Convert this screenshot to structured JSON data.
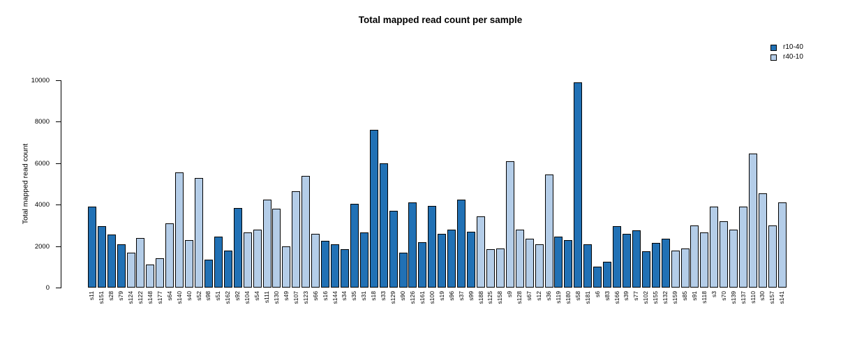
{
  "chart_data": {
    "type": "bar",
    "title": "Total mapped read count per sample",
    "xlabel": "",
    "ylabel": "Total mapped read count",
    "ylim": [
      0,
      10000
    ],
    "yticks": [
      0,
      2000,
      4000,
      6000,
      8000,
      10000
    ],
    "grid": false,
    "legend_position": "top-right",
    "series": [
      {
        "name": "r10-40",
        "color": "#2171B5"
      },
      {
        "name": "r40-10",
        "color": "#B4CDE8"
      }
    ],
    "bars": [
      {
        "sample": "s11",
        "group": "r10-40",
        "value": 3900
      },
      {
        "sample": "s151",
        "group": "r10-40",
        "value": 2950
      },
      {
        "sample": "s28",
        "group": "r10-40",
        "value": 2550
      },
      {
        "sample": "s79",
        "group": "r10-40",
        "value": 2100
      },
      {
        "sample": "s124",
        "group": "r40-10",
        "value": 1700
      },
      {
        "sample": "s122",
        "group": "r40-10",
        "value": 2400
      },
      {
        "sample": "s148",
        "group": "r40-10",
        "value": 1100
      },
      {
        "sample": "s177",
        "group": "r40-10",
        "value": 1400
      },
      {
        "sample": "s64",
        "group": "r40-10",
        "value": 3100
      },
      {
        "sample": "s140",
        "group": "r40-10",
        "value": 5550
      },
      {
        "sample": "s40",
        "group": "r40-10",
        "value": 2300
      },
      {
        "sample": "s52",
        "group": "r40-10",
        "value": 5300
      },
      {
        "sample": "s98",
        "group": "r10-40",
        "value": 1350
      },
      {
        "sample": "s51",
        "group": "r10-40",
        "value": 2450
      },
      {
        "sample": "s162",
        "group": "r10-40",
        "value": 1800
      },
      {
        "sample": "s92",
        "group": "r10-40",
        "value": 3850
      },
      {
        "sample": "s104",
        "group": "r40-10",
        "value": 2650
      },
      {
        "sample": "s54",
        "group": "r40-10",
        "value": 2800
      },
      {
        "sample": "s111",
        "group": "r40-10",
        "value": 4250
      },
      {
        "sample": "s130",
        "group": "r40-10",
        "value": 3800
      },
      {
        "sample": "s49",
        "group": "r40-10",
        "value": 2000
      },
      {
        "sample": "s107",
        "group": "r40-10",
        "value": 4650
      },
      {
        "sample": "s123",
        "group": "r40-10",
        "value": 5400
      },
      {
        "sample": "s66",
        "group": "r40-10",
        "value": 2600
      },
      {
        "sample": "s16",
        "group": "r10-40",
        "value": 2250
      },
      {
        "sample": "s144",
        "group": "r10-40",
        "value": 2100
      },
      {
        "sample": "s34",
        "group": "r10-40",
        "value": 1850
      },
      {
        "sample": "s35",
        "group": "r10-40",
        "value": 4050
      },
      {
        "sample": "s31",
        "group": "r10-40",
        "value": 2650
      },
      {
        "sample": "s18",
        "group": "r10-40",
        "value": 7600
      },
      {
        "sample": "s33",
        "group": "r10-40",
        "value": 6000
      },
      {
        "sample": "s129",
        "group": "r10-40",
        "value": 3700
      },
      {
        "sample": "s90",
        "group": "r10-40",
        "value": 1700
      },
      {
        "sample": "s126",
        "group": "r10-40",
        "value": 4100
      },
      {
        "sample": "s161",
        "group": "r10-40",
        "value": 2200
      },
      {
        "sample": "s100",
        "group": "r10-40",
        "value": 3950
      },
      {
        "sample": "s19",
        "group": "r10-40",
        "value": 2600
      },
      {
        "sample": "s96",
        "group": "r10-40",
        "value": 2800
      },
      {
        "sample": "s37",
        "group": "r10-40",
        "value": 4250
      },
      {
        "sample": "s99",
        "group": "r10-40",
        "value": 2700
      },
      {
        "sample": "s188",
        "group": "r40-10",
        "value": 3450
      },
      {
        "sample": "s125",
        "group": "r40-10",
        "value": 1850
      },
      {
        "sample": "s158",
        "group": "r40-10",
        "value": 1900
      },
      {
        "sample": "s9",
        "group": "r40-10",
        "value": 6100
      },
      {
        "sample": "s128",
        "group": "r40-10",
        "value": 2800
      },
      {
        "sample": "s67",
        "group": "r40-10",
        "value": 2350
      },
      {
        "sample": "s12",
        "group": "r40-10",
        "value": 2100
      },
      {
        "sample": "s36",
        "group": "r40-10",
        "value": 5450
      },
      {
        "sample": "s119",
        "group": "r10-40",
        "value": 2450
      },
      {
        "sample": "s180",
        "group": "r10-40",
        "value": 2300
      },
      {
        "sample": "s58",
        "group": "r10-40",
        "value": 9900
      },
      {
        "sample": "s181",
        "group": "r10-40",
        "value": 2100
      },
      {
        "sample": "s6",
        "group": "r10-40",
        "value": 1000
      },
      {
        "sample": "s83",
        "group": "r10-40",
        "value": 1250
      },
      {
        "sample": "s166",
        "group": "r10-40",
        "value": 2950
      },
      {
        "sample": "s39",
        "group": "r10-40",
        "value": 2600
      },
      {
        "sample": "s77",
        "group": "r10-40",
        "value": 2750
      },
      {
        "sample": "s102",
        "group": "r10-40",
        "value": 1750
      },
      {
        "sample": "s155",
        "group": "r10-40",
        "value": 2150
      },
      {
        "sample": "s132",
        "group": "r10-40",
        "value": 2350
      },
      {
        "sample": "s159",
        "group": "r40-10",
        "value": 1800
      },
      {
        "sample": "s85",
        "group": "r40-10",
        "value": 1900
      },
      {
        "sample": "s91",
        "group": "r40-10",
        "value": 3000
      },
      {
        "sample": "s118",
        "group": "r40-10",
        "value": 2650
      },
      {
        "sample": "s3",
        "group": "r40-10",
        "value": 3900
      },
      {
        "sample": "s70",
        "group": "r40-10",
        "value": 3200
      },
      {
        "sample": "s139",
        "group": "r40-10",
        "value": 2800
      },
      {
        "sample": "s137",
        "group": "r40-10",
        "value": 3900
      },
      {
        "sample": "s110",
        "group": "r40-10",
        "value": 6450
      },
      {
        "sample": "s30",
        "group": "r40-10",
        "value": 4550
      },
      {
        "sample": "s157",
        "group": "r40-10",
        "value": 3000
      },
      {
        "sample": "s141",
        "group": "r40-10",
        "value": 4100
      }
    ]
  }
}
